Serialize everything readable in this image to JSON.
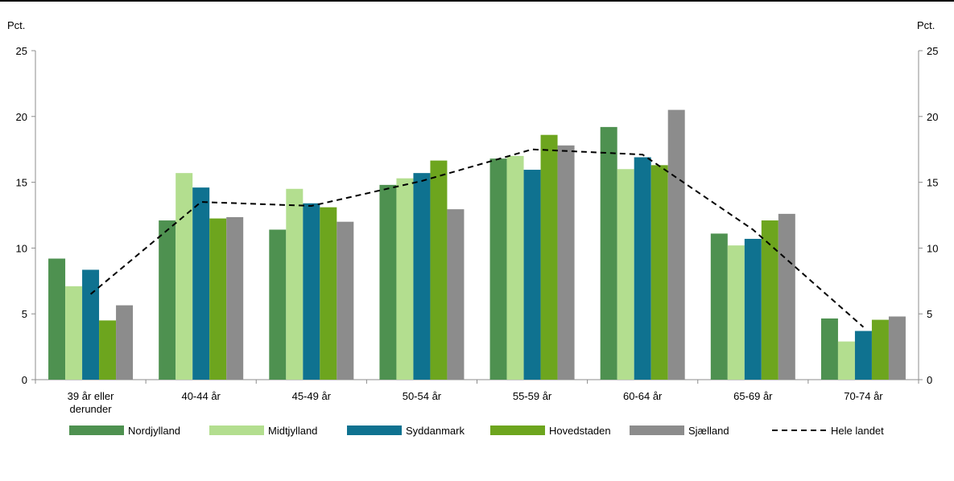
{
  "chart_data": {
    "type": "bar",
    "ylabel_left": "Pct.",
    "ylabel_right": "Pct.",
    "ylim": [
      0,
      25
    ],
    "yticks": [
      0,
      5,
      10,
      15,
      20,
      25
    ],
    "categories": [
      [
        "39 år eller",
        "derunder"
      ],
      [
        "40-44 år"
      ],
      [
        "45-49 år"
      ],
      [
        "50-54 år"
      ],
      [
        "55-59 år"
      ],
      [
        "60-64 år"
      ],
      [
        "65-69 år"
      ],
      [
        "70-74 år"
      ]
    ],
    "series": [
      {
        "name": "Nordjylland",
        "color": "#4e9150",
        "values": [
          9.2,
          12.1,
          11.4,
          14.8,
          16.8,
          19.2,
          11.1,
          4.65
        ]
      },
      {
        "name": "Midtjylland",
        "color": "#b3de8f",
        "values": [
          7.1,
          15.7,
          14.5,
          15.3,
          17.0,
          16.0,
          10.2,
          2.9
        ]
      },
      {
        "name": "Syddanmark",
        "color": "#0f7290",
        "values": [
          8.35,
          14.6,
          13.4,
          15.7,
          15.95,
          16.9,
          10.7,
          3.7
        ]
      },
      {
        "name": "Hovedstaden",
        "color": "#6da51e",
        "values": [
          4.5,
          12.25,
          13.1,
          16.65,
          18.6,
          16.3,
          12.1,
          4.55
        ]
      },
      {
        "name": "Sjælland",
        "color": "#8c8c8c",
        "values": [
          5.65,
          12.35,
          12.0,
          12.95,
          17.8,
          20.5,
          12.6,
          4.8
        ]
      }
    ],
    "line": {
      "name": "Hele landet",
      "color": "#000000",
      "style": "dashed",
      "values": [
        6.5,
        13.5,
        13.2,
        15.1,
        17.5,
        17.1,
        11.4,
        4.0
      ]
    },
    "legend_placement": "bottom",
    "grid": false
  }
}
